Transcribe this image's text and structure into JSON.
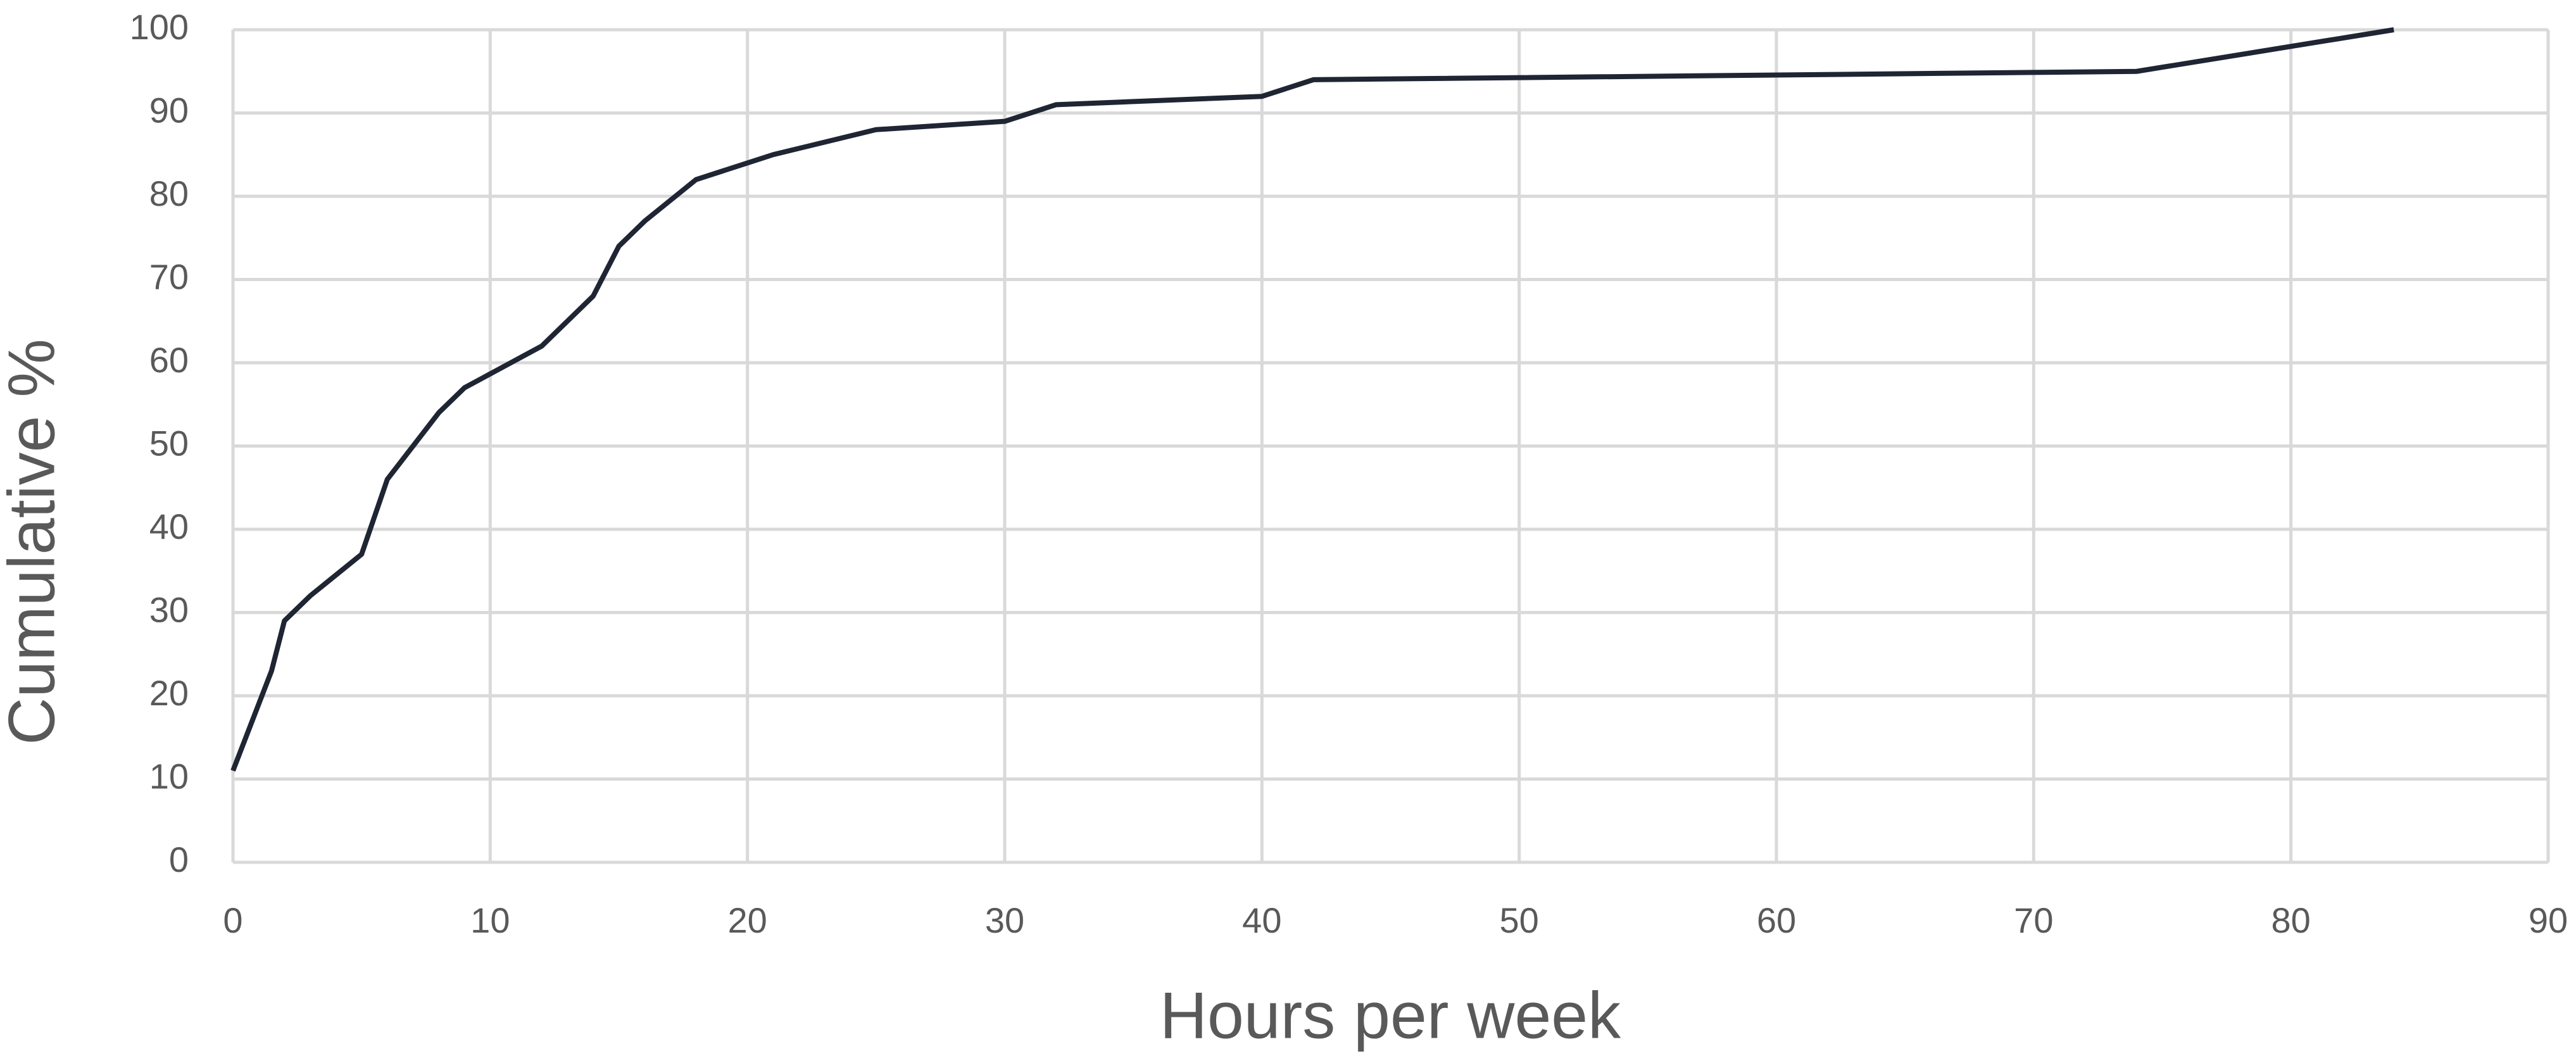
{
  "chart_data": {
    "type": "line",
    "x_label": "Hours per week",
    "y_label": "Cumulative %",
    "series": [
      {
        "name": "Cumulative",
        "color": "#1f2533",
        "x": [
          0,
          1.5,
          2,
          3,
          5,
          6,
          8,
          9,
          12,
          14,
          15,
          16,
          18,
          21,
          25,
          30,
          32,
          40,
          42,
          74,
          84
        ],
        "values": [
          11,
          23,
          29,
          32,
          37,
          46,
          54,
          57,
          62,
          68,
          74,
          77,
          82,
          85,
          88,
          89,
          91,
          92,
          94,
          95,
          100
        ]
      }
    ],
    "xlim": [
      0,
      90
    ],
    "xticks": [
      0,
      10,
      20,
      30,
      40,
      50,
      60,
      70,
      80,
      90
    ],
    "ylim": [
      0,
      100
    ],
    "yticks": [
      0,
      10,
      20,
      30,
      40,
      50,
      60,
      70,
      80,
      90,
      100
    ],
    "grid": true
  }
}
